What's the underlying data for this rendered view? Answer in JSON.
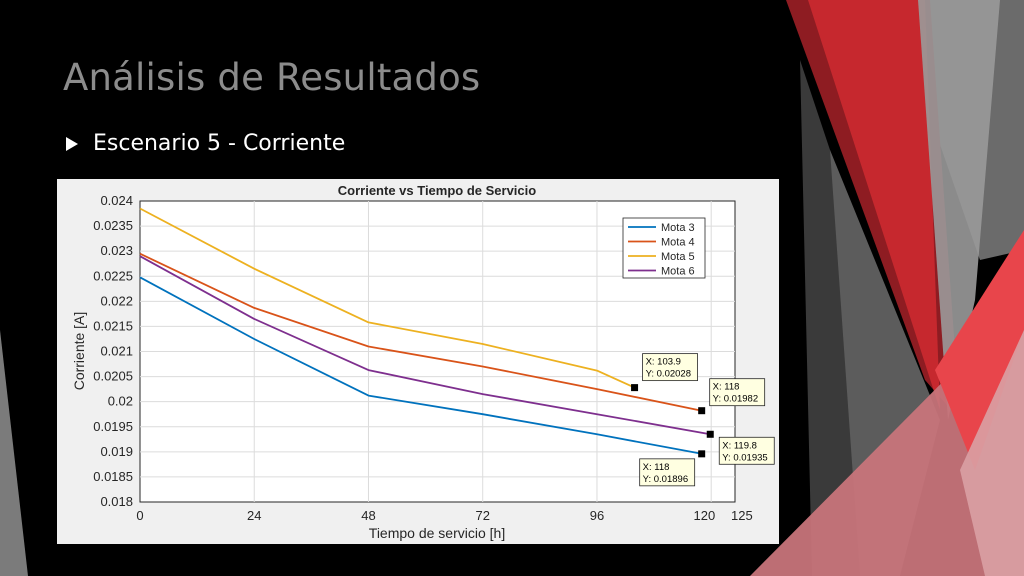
{
  "slide": {
    "title": "Análisis de Resultados",
    "bullet": "Escenario 5 - Corriente"
  },
  "colors": {
    "background": "#000000",
    "title": "#8c8c8c",
    "accent_red": "#c0272d",
    "accent_gray": "#5a5a5a"
  },
  "icons": {
    "bullet": "triangle-right-icon"
  },
  "chart_data": {
    "type": "line",
    "title": "Corriente vs Tiempo de Servicio",
    "xlabel": "Tiempo de servicio [h]",
    "ylabel": "Corriente [A]",
    "xlim": [
      0,
      125
    ],
    "ylim": [
      0.018,
      0.024
    ],
    "xticks": [
      0,
      24,
      48,
      72,
      96,
      120,
      125
    ],
    "yticks": [
      0.018,
      0.0185,
      0.019,
      0.0195,
      0.02,
      0.0205,
      0.021,
      0.0215,
      0.022,
      0.0225,
      0.023,
      0.0235,
      0.024
    ],
    "grid": true,
    "legend_position": "top-right",
    "series": [
      {
        "name": "Mota 3",
        "color": "#0072bd",
        "x": [
          0,
          24,
          48,
          72,
          96,
          118
        ],
        "y": [
          0.02248,
          0.02125,
          0.02012,
          0.01975,
          0.01935,
          0.01896
        ]
      },
      {
        "name": "Mota 4",
        "color": "#d95319",
        "x": [
          0,
          24,
          48,
          72,
          96,
          118
        ],
        "y": [
          0.02295,
          0.02187,
          0.0211,
          0.0207,
          0.02025,
          0.01982
        ]
      },
      {
        "name": "Mota 5",
        "color": "#edb120",
        "x": [
          0,
          24,
          48,
          72,
          96,
          103.9
        ],
        "y": [
          0.02385,
          0.02265,
          0.02158,
          0.02115,
          0.02062,
          0.02028
        ]
      },
      {
        "name": "Mota 6",
        "color": "#7e2f8e",
        "x": [
          0,
          24,
          48,
          72,
          96,
          119.8
        ],
        "y": [
          0.0229,
          0.02165,
          0.02063,
          0.02015,
          0.01975,
          0.01935
        ]
      }
    ],
    "datatips": [
      {
        "x": 103.9,
        "y": 0.02028,
        "line1": "X: 103.9",
        "line2": "Y: 0.02028"
      },
      {
        "x": 118,
        "y": 0.01982,
        "line1": "X: 118",
        "line2": "Y: 0.01982"
      },
      {
        "x": 119.8,
        "y": 0.01935,
        "line1": "X: 119.8",
        "line2": "Y: 0.01935"
      },
      {
        "x": 118,
        "y": 0.01896,
        "line1": "X: 118",
        "line2": "Y: 0.01896"
      }
    ]
  }
}
